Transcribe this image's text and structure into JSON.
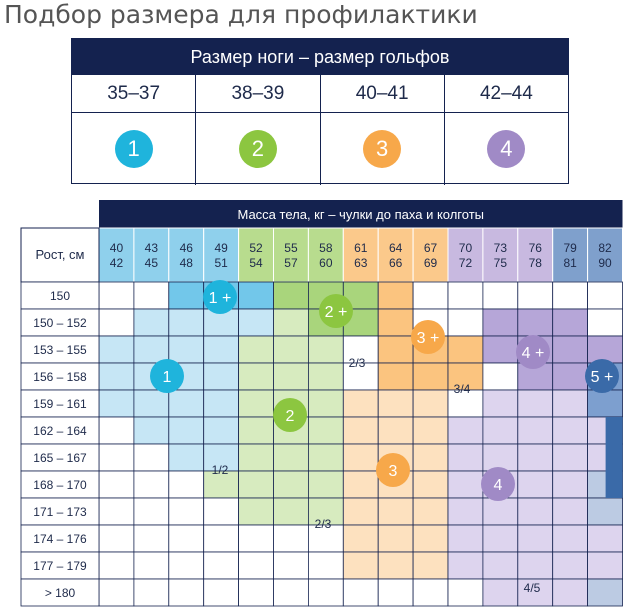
{
  "title": "Подбор размера для профилактики",
  "leg_table": {
    "header": "Размер ноги – размер гольфов",
    "sizes": [
      "35–37",
      "38–39",
      "40–41",
      "42–44"
    ],
    "badges": [
      {
        "label": "1",
        "color": "#1fb4dc"
      },
      {
        "label": "2",
        "color": "#8cc640"
      },
      {
        "label": "3",
        "color": "#f7a84a"
      },
      {
        "label": "4",
        "color": "#a08ac6"
      }
    ]
  },
  "mass_table": {
    "header": "Масса тела, кг – чулки до паха и колготы",
    "height_header": "Рост, см",
    "weight_columns": [
      [
        "40",
        "42"
      ],
      [
        "43",
        "45"
      ],
      [
        "46",
        "48"
      ],
      [
        "49",
        "51"
      ],
      [
        "52",
        "54"
      ],
      [
        "55",
        "57"
      ],
      [
        "58",
        "60"
      ],
      [
        "61",
        "63"
      ],
      [
        "64",
        "66"
      ],
      [
        "67",
        "69"
      ],
      [
        "70",
        "72"
      ],
      [
        "73",
        "75"
      ],
      [
        "76",
        "78"
      ],
      [
        "79",
        "81"
      ],
      [
        "82",
        "90"
      ]
    ],
    "height_rows": [
      "150",
      "150 – 152",
      "153 – 155",
      "156 – 158",
      "159 – 161",
      "162 – 164",
      "165 – 167",
      "168 – 170",
      "171 – 173",
      "174 – 176",
      "177 – 179",
      "> 180"
    ],
    "zone_badges": [
      {
        "label": "1 +",
        "color": "#1fb4dc"
      },
      {
        "label": "2 +",
        "color": "#8cc640"
      },
      {
        "label": "3 +",
        "color": "#f7a84a"
      },
      {
        "label": "4 +",
        "color": "#a08ac6"
      },
      {
        "label": "5 +",
        "color": "#3a6aa8"
      },
      {
        "label": "1",
        "color": "#1fb4dc"
      },
      {
        "label": "2",
        "color": "#8cc640"
      },
      {
        "label": "3",
        "color": "#f7a84a"
      },
      {
        "label": "4",
        "color": "#a08ac6"
      }
    ],
    "split_labels": [
      "1/2",
      "2/3",
      "2/3",
      "3/4",
      "4/5"
    ]
  }
}
